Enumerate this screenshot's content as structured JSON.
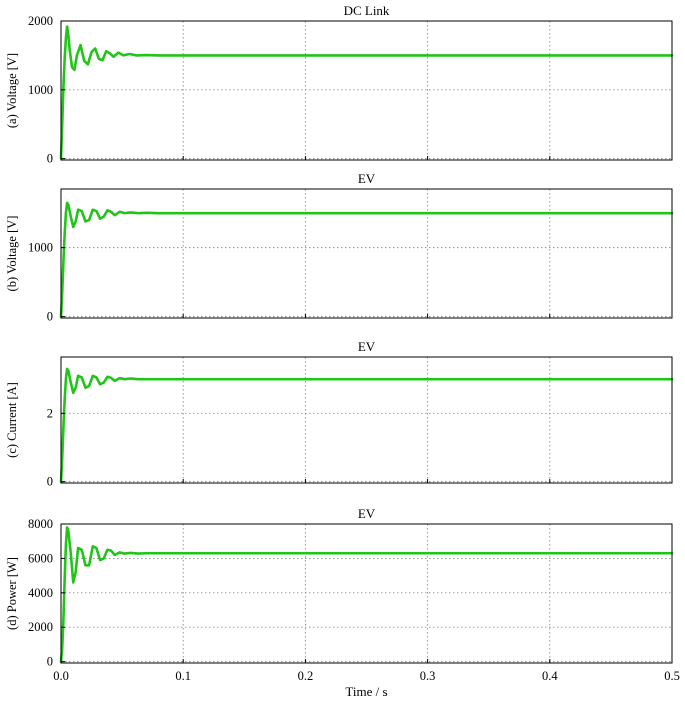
{
  "chart_data": [
    {
      "type": "line",
      "title": "DC Link",
      "ylabel": "(a) Voltage [V]",
      "xlim": [
        0,
        0.5
      ],
      "ylim": [
        -20,
        2000
      ],
      "yticks": [
        0,
        1000,
        2000
      ],
      "xticks": [
        0.0,
        0.1,
        0.2,
        0.3,
        0.4,
        0.5
      ],
      "show_xtick_labels": false,
      "grid": true,
      "series": [
        {
          "color": "#22c41a",
          "x": [
            0,
            0.001,
            0.002,
            0.003,
            0.004,
            0.005,
            0.006,
            0.007,
            0.009,
            0.011,
            0.013,
            0.016,
            0.019,
            0.022,
            0.025,
            0.028,
            0.031,
            0.034,
            0.037,
            0.04,
            0.043,
            0.047,
            0.051,
            0.056,
            0.062,
            0.07,
            0.08,
            0.1,
            0.2,
            0.3,
            0.4,
            0.5
          ],
          "y": [
            0,
            500,
            1050,
            1450,
            1750,
            1920,
            1800,
            1600,
            1330,
            1290,
            1500,
            1650,
            1420,
            1370,
            1550,
            1600,
            1450,
            1430,
            1560,
            1530,
            1480,
            1540,
            1500,
            1520,
            1500,
            1505,
            1500,
            1500,
            1500,
            1500,
            1500,
            1500
          ]
        }
      ]
    },
    {
      "type": "line",
      "title": "EV",
      "ylabel": "(b) Voltage [V]",
      "xlim": [
        0,
        0.5
      ],
      "ylim": [
        -20,
        1850
      ],
      "yticks": [
        0,
        1000
      ],
      "xticks": [
        0.0,
        0.1,
        0.2,
        0.3,
        0.4,
        0.5
      ],
      "show_xtick_labels": false,
      "grid": true,
      "series": [
        {
          "color": "#22c41a",
          "x": [
            0,
            0.001,
            0.002,
            0.003,
            0.004,
            0.005,
            0.006,
            0.008,
            0.01,
            0.012,
            0.014,
            0.017,
            0.02,
            0.023,
            0.026,
            0.029,
            0.032,
            0.035,
            0.038,
            0.041,
            0.044,
            0.048,
            0.052,
            0.057,
            0.063,
            0.07,
            0.08,
            0.1,
            0.2,
            0.3,
            0.4,
            0.5
          ],
          "y": [
            0,
            350,
            800,
            1200,
            1500,
            1650,
            1620,
            1450,
            1300,
            1380,
            1550,
            1530,
            1380,
            1400,
            1550,
            1530,
            1420,
            1450,
            1540,
            1520,
            1470,
            1520,
            1500,
            1510,
            1500,
            1505,
            1500,
            1500,
            1500,
            1500,
            1500,
            1500
          ]
        }
      ]
    },
    {
      "type": "line",
      "title": "EV",
      "ylabel": "(c) Current [A]",
      "xlim": [
        0,
        0.5
      ],
      "ylim": [
        -0.04,
        3.65
      ],
      "yticks": [
        0,
        2
      ],
      "xticks": [
        0.0,
        0.1,
        0.2,
        0.3,
        0.4,
        0.5
      ],
      "show_xtick_labels": false,
      "grid": true,
      "series": [
        {
          "color": "#22c41a",
          "x": [
            0,
            0.001,
            0.002,
            0.003,
            0.004,
            0.005,
            0.006,
            0.008,
            0.01,
            0.012,
            0.014,
            0.017,
            0.02,
            0.023,
            0.026,
            0.029,
            0.032,
            0.035,
            0.038,
            0.041,
            0.044,
            0.048,
            0.052,
            0.057,
            0.063,
            0.07,
            0.08,
            0.1,
            0.2,
            0.3,
            0.4,
            0.5
          ],
          "y": [
            0,
            0.7,
            1.6,
            2.4,
            3.0,
            3.3,
            3.25,
            2.9,
            2.6,
            2.75,
            3.1,
            3.05,
            2.75,
            2.8,
            3.1,
            3.05,
            2.85,
            2.9,
            3.07,
            3.04,
            2.95,
            3.03,
            3.0,
            3.02,
            3.0,
            3.0,
            3.0,
            3.0,
            3.0,
            3.0,
            3.0,
            3.0
          ]
        }
      ]
    },
    {
      "type": "line",
      "title": "EV",
      "ylabel": "(d) Power [W]",
      "xlabel": "Time / s",
      "xlim": [
        0,
        0.5
      ],
      "ylim": [
        -80,
        8000
      ],
      "yticks": [
        0,
        2000,
        4000,
        6000,
        8000
      ],
      "xticks": [
        0.0,
        0.1,
        0.2,
        0.3,
        0.4,
        0.5
      ],
      "xtick_labels": [
        "0.0",
        "0.1",
        "0.2",
        "0.3",
        "0.4",
        "0.5"
      ],
      "show_xtick_labels": true,
      "grid": true,
      "series": [
        {
          "color": "#22c41a",
          "x": [
            0,
            0.001,
            0.002,
            0.003,
            0.004,
            0.005,
            0.006,
            0.008,
            0.01,
            0.012,
            0.014,
            0.017,
            0.02,
            0.023,
            0.026,
            0.029,
            0.032,
            0.035,
            0.038,
            0.041,
            0.044,
            0.048,
            0.052,
            0.057,
            0.063,
            0.07,
            0.08,
            0.1,
            0.2,
            0.3,
            0.4,
            0.5
          ],
          "y": [
            0,
            800,
            2500,
            4800,
            6800,
            7800,
            7600,
            6300,
            4600,
            5200,
            6600,
            6500,
            5600,
            5600,
            6700,
            6600,
            5900,
            6000,
            6500,
            6450,
            6200,
            6350,
            6280,
            6320,
            6280,
            6300,
            6300,
            6300,
            6300,
            6300,
            6300,
            6300
          ]
        }
      ]
    }
  ]
}
